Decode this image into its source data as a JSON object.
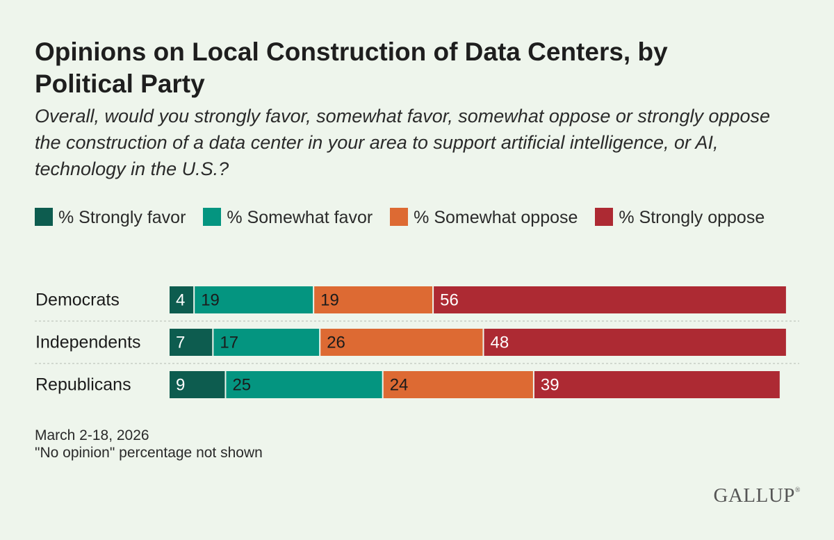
{
  "title": "Opinions on Local Construction of Data Centers, by Political Party",
  "subtitle": "Overall, would you strongly favor, somewhat favor, somewhat oppose or strongly oppose the construction of a data center in your area to support artificial intelligence, or AI, technology in the U.S.?",
  "legend": [
    {
      "label": "% Strongly favor",
      "color": "#0d5c4f"
    },
    {
      "label": "% Somewhat favor",
      "color": "#049580"
    },
    {
      "label": "% Somewhat oppose",
      "color": "#dd6a33"
    },
    {
      "label": "% Strongly oppose",
      "color": "#ad2a33"
    }
  ],
  "chart_data": {
    "type": "bar",
    "orientation": "horizontal",
    "stacked": true,
    "categories": [
      "Democrats",
      "Independents",
      "Republicans"
    ],
    "series": [
      {
        "name": "% Strongly favor",
        "color": "#0d5c4f",
        "label_color": "#ffffff",
        "values": [
          4,
          7,
          9
        ]
      },
      {
        "name": "% Somewhat favor",
        "color": "#049580",
        "label_color": "#1b1b1b",
        "values": [
          19,
          17,
          25
        ]
      },
      {
        "name": "% Somewhat oppose",
        "color": "#dd6a33",
        "label_color": "#1b1b1b",
        "values": [
          19,
          26,
          24
        ]
      },
      {
        "name": "% Strongly oppose",
        "color": "#ad2a33",
        "label_color": "#ffffff",
        "values": [
          56,
          48,
          39
        ]
      }
    ],
    "xlim": [
      0,
      100
    ],
    "grid": false,
    "legend_position": "top"
  },
  "footnote": {
    "date": "March 2-18, 2026",
    "note": "\"No opinion\" percentage not shown"
  },
  "logo": {
    "text": "GALLUP",
    "mark": "®"
  }
}
